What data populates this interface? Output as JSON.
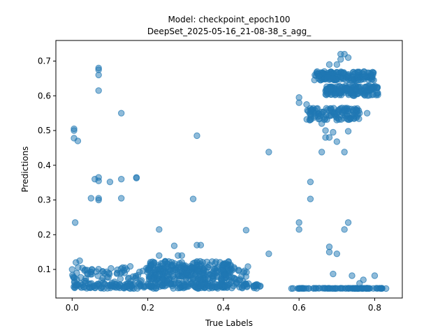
{
  "chart_data": {
    "type": "scatter",
    "title_line1": "Model: checkpoint_epoch100",
    "title_line2": "DeepSet_2025-05-16_21-08-38_s_agg_",
    "xlabel": "True Labels",
    "ylabel": "Predictions",
    "xlim": [
      -0.043,
      0.873
    ],
    "ylim": [
      0.0177,
      0.7593
    ],
    "xticks": [
      0.0,
      0.2,
      0.4,
      0.6,
      0.8
    ],
    "xtick_labels": [
      "0.0",
      "0.2",
      "0.4",
      "0.6",
      "0.8"
    ],
    "yticks": [
      0.1,
      0.2,
      0.3,
      0.4,
      0.5,
      0.6,
      0.7
    ],
    "ytick_labels": [
      "0.1",
      "0.2",
      "0.3",
      "0.4",
      "0.5",
      "0.6",
      "0.7"
    ],
    "grid": false,
    "marker_color": "#1f77b4",
    "marker_alpha": 0.5,
    "clusters": [
      {
        "x": [
          0.0,
          0.5
        ],
        "y": [
          0.045,
          0.06
        ],
        "n": 240
      },
      {
        "x": [
          0.0,
          0.47
        ],
        "y": [
          0.06,
          0.11
        ],
        "n": 180
      },
      {
        "x": [
          0.2,
          0.42
        ],
        "y": [
          0.07,
          0.125
        ],
        "n": 220
      },
      {
        "x": [
          0.58,
          0.82
        ],
        "y": [
          0.045,
          0.046
        ],
        "n": 90
      },
      {
        "x": [
          0.64,
          0.8
        ],
        "y": [
          0.645,
          0.67
        ],
        "n": 160
      },
      {
        "x": [
          0.67,
          0.81
        ],
        "y": [
          0.6,
          0.63
        ],
        "n": 160
      },
      {
        "x": [
          0.62,
          0.76
        ],
        "y": [
          0.53,
          0.565
        ],
        "n": 110
      }
    ],
    "points": [
      {
        "x": 0.07,
        "y": 0.68
      },
      {
        "x": 0.07,
        "y": 0.675
      },
      {
        "x": 0.07,
        "y": 0.66
      },
      {
        "x": 0.07,
        "y": 0.615
      },
      {
        "x": 0.13,
        "y": 0.55
      },
      {
        "x": 0.005,
        "y": 0.505
      },
      {
        "x": 0.005,
        "y": 0.5
      },
      {
        "x": 0.005,
        "y": 0.478
      },
      {
        "x": 0.015,
        "y": 0.47
      },
      {
        "x": 0.33,
        "y": 0.485
      },
      {
        "x": 0.52,
        "y": 0.438
      },
      {
        "x": 0.06,
        "y": 0.36
      },
      {
        "x": 0.07,
        "y": 0.365
      },
      {
        "x": 0.07,
        "y": 0.355
      },
      {
        "x": 0.1,
        "y": 0.352
      },
      {
        "x": 0.13,
        "y": 0.36
      },
      {
        "x": 0.17,
        "y": 0.365
      },
      {
        "x": 0.17,
        "y": 0.363
      },
      {
        "x": 0.05,
        "y": 0.305
      },
      {
        "x": 0.07,
        "y": 0.305
      },
      {
        "x": 0.07,
        "y": 0.3
      },
      {
        "x": 0.13,
        "y": 0.305
      },
      {
        "x": 0.32,
        "y": 0.303
      },
      {
        "x": 0.008,
        "y": 0.235
      },
      {
        "x": 0.23,
        "y": 0.215
      },
      {
        "x": 0.33,
        "y": 0.17
      },
      {
        "x": 0.34,
        "y": 0.17
      },
      {
        "x": 0.46,
        "y": 0.213
      },
      {
        "x": 0.52,
        "y": 0.145
      },
      {
        "x": 0.6,
        "y": 0.235
      },
      {
        "x": 0.6,
        "y": 0.215
      },
      {
        "x": 0.63,
        "y": 0.352
      },
      {
        "x": 0.63,
        "y": 0.303
      },
      {
        "x": 0.68,
        "y": 0.165
      },
      {
        "x": 0.68,
        "y": 0.15
      },
      {
        "x": 0.7,
        "y": 0.145
      },
      {
        "x": 0.72,
        "y": 0.215
      },
      {
        "x": 0.73,
        "y": 0.235
      },
      {
        "x": 0.69,
        "y": 0.087
      },
      {
        "x": 0.74,
        "y": 0.082
      },
      {
        "x": 0.8,
        "y": 0.082
      },
      {
        "x": 0.76,
        "y": 0.06
      },
      {
        "x": 0.77,
        "y": 0.07
      },
      {
        "x": 0.66,
        "y": 0.438
      },
      {
        "x": 0.72,
        "y": 0.438
      },
      {
        "x": 0.7,
        "y": 0.468
      },
      {
        "x": 0.67,
        "y": 0.48
      },
      {
        "x": 0.68,
        "y": 0.48
      },
      {
        "x": 0.69,
        "y": 0.495
      },
      {
        "x": 0.73,
        "y": 0.498
      },
      {
        "x": 0.67,
        "y": 0.5
      },
      {
        "x": 0.66,
        "y": 0.52
      },
      {
        "x": 0.6,
        "y": 0.595
      },
      {
        "x": 0.6,
        "y": 0.58
      },
      {
        "x": 0.62,
        "y": 0.575
      },
      {
        "x": 0.71,
        "y": 0.72
      },
      {
        "x": 0.72,
        "y": 0.72
      },
      {
        "x": 0.71,
        "y": 0.705
      },
      {
        "x": 0.73,
        "y": 0.71
      },
      {
        "x": 0.7,
        "y": 0.69
      },
      {
        "x": 0.68,
        "y": 0.69
      },
      {
        "x": 0.76,
        "y": 0.55
      },
      {
        "x": 0.75,
        "y": 0.56
      },
      {
        "x": 0.78,
        "y": 0.55
      },
      {
        "x": 0.0,
        "y": 0.1
      },
      {
        "x": 0.01,
        "y": 0.12
      },
      {
        "x": 0.02,
        "y": 0.125
      },
      {
        "x": 0.04,
        "y": 0.098
      },
      {
        "x": 0.23,
        "y": 0.14
      },
      {
        "x": 0.27,
        "y": 0.168
      },
      {
        "x": 0.29,
        "y": 0.14
      },
      {
        "x": 0.28,
        "y": 0.14
      },
      {
        "x": 0.83,
        "y": 0.045
      },
      {
        "x": 0.6,
        "y": 0.045
      },
      {
        "x": 0.58,
        "y": 0.045
      }
    ]
  }
}
